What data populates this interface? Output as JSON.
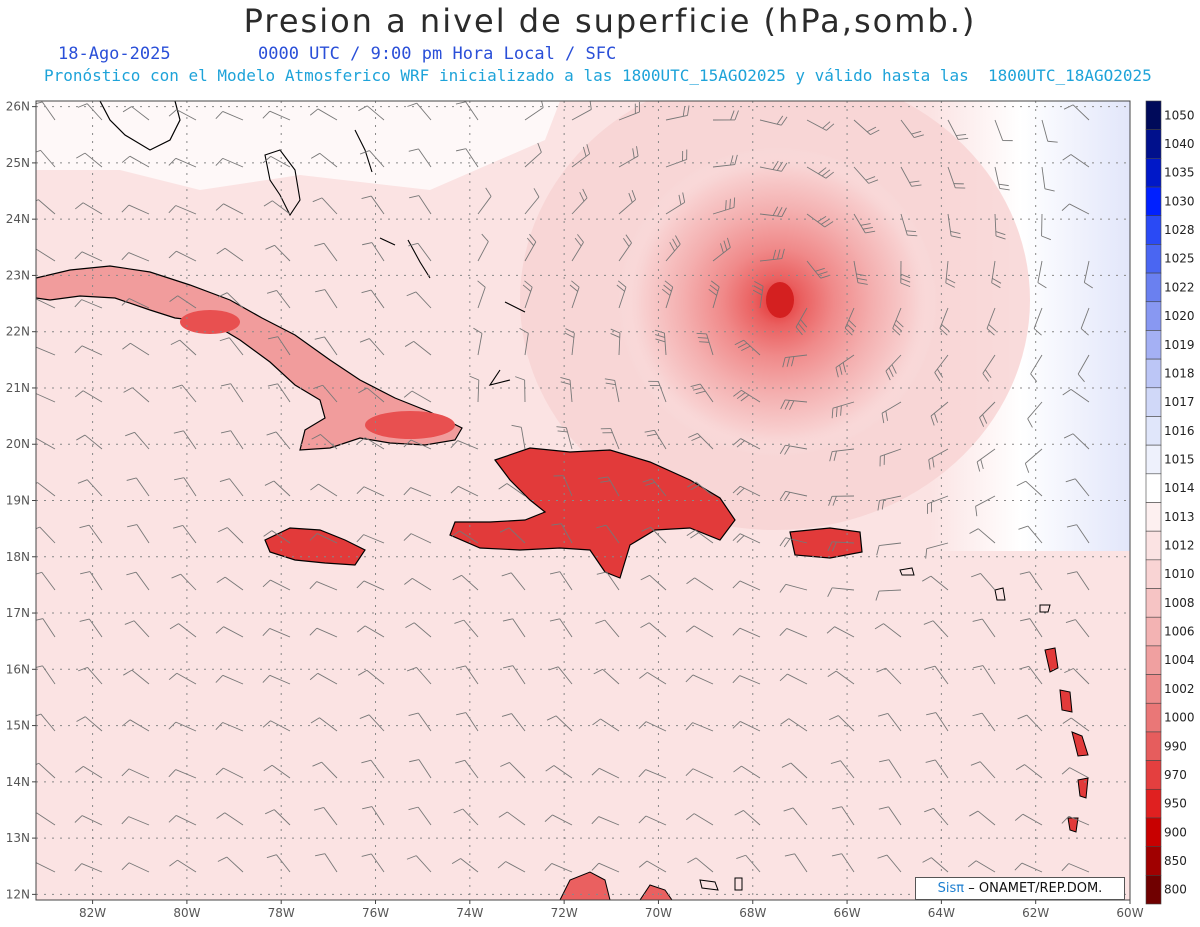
{
  "header": {
    "title": "Presion a nivel de superficie (hPa,somb.)",
    "date": "18-Ago-2025",
    "time_label": "0000 UTC / 9:00 pm Hora Local / SFC",
    "forecast_label": "Pronóstico con el Modelo Atmosferico WRF inicializado a las 1800UTC_15AGO2025 y válido hasta las  1800UTC_18AGO2025"
  },
  "map": {
    "lon_ticks": [
      "82W",
      "80W",
      "78W",
      "76W",
      "74W",
      "72W",
      "70W",
      "68W",
      "66W",
      "64W",
      "62W",
      "60W"
    ],
    "lat_ticks": [
      "26N",
      "25N",
      "24N",
      "23N",
      "22N",
      "21N",
      "20N",
      "19N",
      "18N",
      "17N",
      "16N",
      "15N",
      "14N",
      "13N",
      "12N"
    ],
    "lon_values": [
      -82,
      -80,
      -78,
      -76,
      -74,
      -72,
      -70,
      -68,
      -66,
      -64,
      -62,
      -60
    ],
    "lat_values": [
      26,
      25,
      24,
      23,
      22,
      21,
      20,
      19,
      18,
      17,
      16,
      15,
      14,
      13,
      12
    ],
    "lon_range": [
      -83.2,
      -60
    ],
    "lat_range": [
      11.9,
      26.1
    ],
    "grid": "dotted",
    "storm_center": {
      "lon": -67.4,
      "lat": 22.5
    },
    "colors": {
      "base": "#fbe3e3",
      "high_pressure": "#e2e6fa",
      "low_pressure": "#e43030",
      "coast": "#000000"
    }
  },
  "colorbar": {
    "levels": [
      "1050",
      "1040",
      "1035",
      "1030",
      "1028",
      "1025",
      "1022",
      "1020",
      "1019",
      "1018",
      "1017",
      "1016",
      "1015",
      "1014",
      "1013",
      "1012",
      "1010",
      "1008",
      "1006",
      "1004",
      "1002",
      "1000",
      "990",
      "970",
      "950",
      "900",
      "850",
      "800"
    ],
    "colors": [
      "#000a5a",
      "#00108c",
      "#0018c8",
      "#0020ff",
      "#2a4af5",
      "#4a66f2",
      "#6a80f0",
      "#8898f2",
      "#a4b0f4",
      "#bcc6f6",
      "#d0d8f8",
      "#e0e6fa",
      "#eef1fc",
      "#ffffff",
      "#fdf0f0",
      "#fbe3e3",
      "#f9d4d4",
      "#f6c4c4",
      "#f3b3b3",
      "#f0a0a0",
      "#ed8c8c",
      "#ea7777",
      "#e65d5d",
      "#e43f3f",
      "#e02020",
      "#c80000",
      "#a00000",
      "#700000"
    ]
  },
  "credit": {
    "brand": "Sisπ",
    "text": "– ONAMET/REP.DOM."
  }
}
